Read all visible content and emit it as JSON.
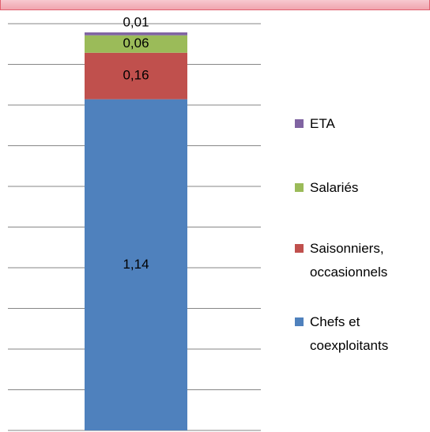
{
  "chart_data": {
    "type": "stacked_bar",
    "categories": [
      null
    ],
    "series": [
      {
        "name": "Chefs et coexploitants",
        "color": "#4f81bd",
        "values": [
          1.14
        ],
        "value_labels": [
          "1,14"
        ]
      },
      {
        "name": "Saisonniers, occasionnels",
        "color": "#c0504d",
        "values": [
          0.16
        ],
        "value_labels": [
          "0,16"
        ]
      },
      {
        "name": "Salariés",
        "color": "#9bbb59",
        "values": [
          0.06
        ],
        "value_labels": [
          "0,06"
        ]
      },
      {
        "name": "ETA",
        "color": "#8064a2",
        "values": [
          0.01
        ],
        "value_labels": [
          "0,01"
        ]
      }
    ],
    "ylim": [
      0,
      1.4
    ],
    "yticks": [
      0,
      0.14,
      0.28,
      0.42,
      0.56,
      0.7,
      0.84,
      0.98,
      1.12,
      1.26,
      1.4
    ],
    "grid": true,
    "legend": "right"
  }
}
